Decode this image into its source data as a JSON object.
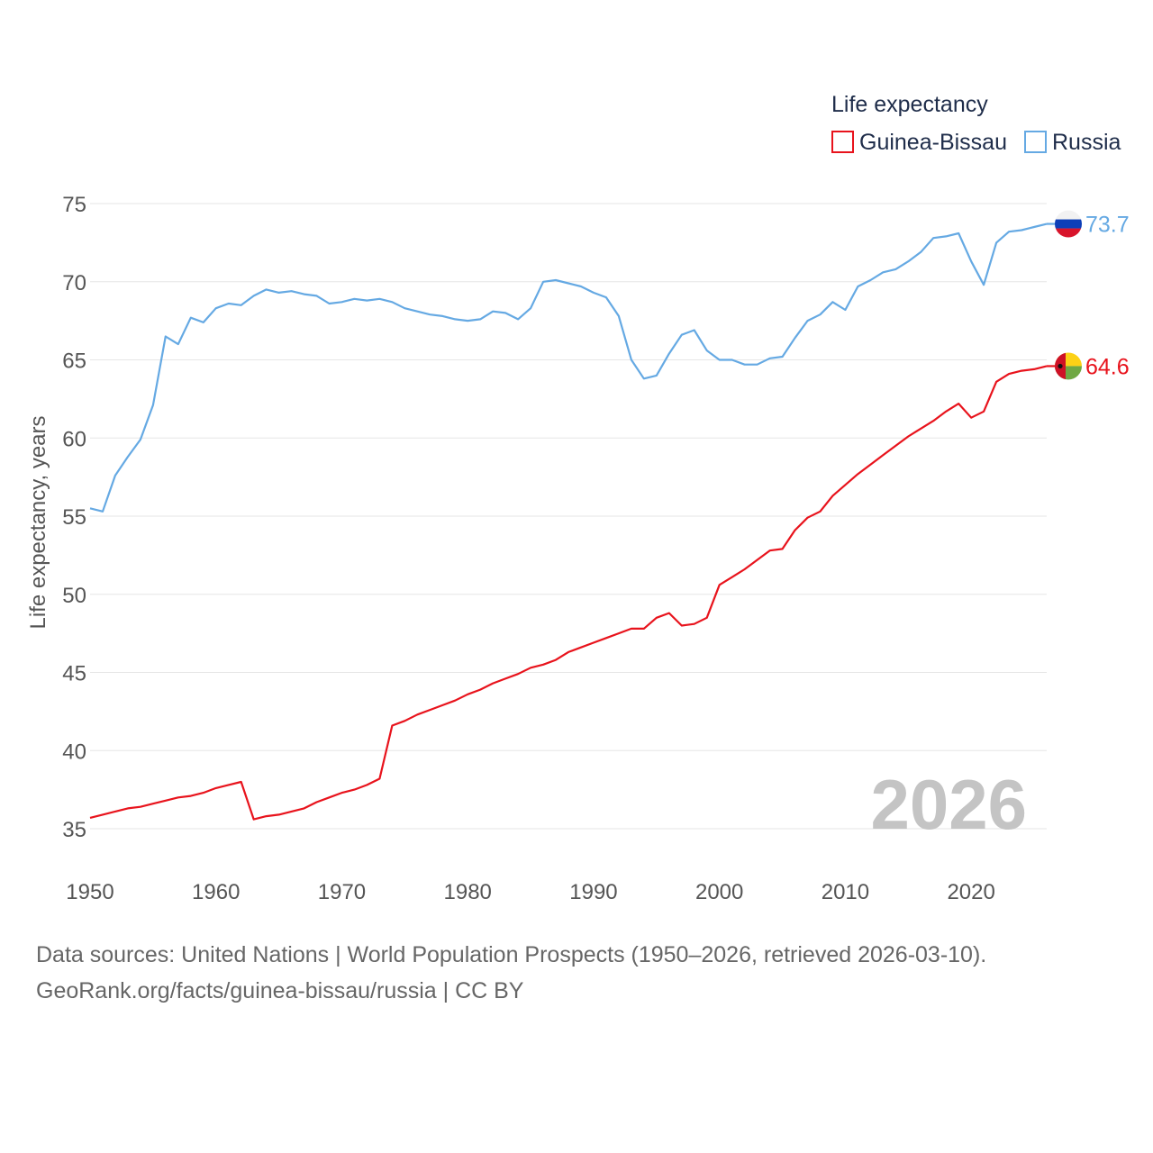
{
  "chart_data": {
    "type": "line",
    "legend_title": "Life expectancy",
    "ylabel": "Life expectancy, years",
    "xlabel": "",
    "ylim": [
      33,
      75.5
    ],
    "xlim": [
      1950,
      2026
    ],
    "yticks": [
      35,
      40,
      45,
      50,
      55,
      60,
      65,
      70,
      75
    ],
    "xticks": [
      1950,
      1960,
      1970,
      1980,
      1990,
      2000,
      2010,
      2020
    ],
    "year_label": "2026",
    "legend_position": "top-right",
    "x": [
      1950,
      1951,
      1952,
      1953,
      1954,
      1955,
      1956,
      1957,
      1958,
      1959,
      1960,
      1961,
      1962,
      1963,
      1964,
      1965,
      1966,
      1967,
      1968,
      1969,
      1970,
      1971,
      1972,
      1973,
      1974,
      1975,
      1976,
      1977,
      1978,
      1979,
      1980,
      1981,
      1982,
      1983,
      1984,
      1985,
      1986,
      1987,
      1988,
      1989,
      1990,
      1991,
      1992,
      1993,
      1994,
      1995,
      1996,
      1997,
      1998,
      1999,
      2000,
      2001,
      2002,
      2003,
      2004,
      2005,
      2006,
      2007,
      2008,
      2009,
      2010,
      2011,
      2012,
      2013,
      2014,
      2015,
      2016,
      2017,
      2018,
      2019,
      2020,
      2021,
      2022,
      2023,
      2024,
      2025,
      2026
    ],
    "series": [
      {
        "name": "Guinea-Bissau",
        "color": "#e8131c",
        "end_label": "64.6",
        "flag": "guinea-bissau-flag-icon",
        "values": [
          35.7,
          35.9,
          36.1,
          36.3,
          36.4,
          36.6,
          36.8,
          37.0,
          37.1,
          37.3,
          37.6,
          37.8,
          38.0,
          35.6,
          35.8,
          35.9,
          36.1,
          36.3,
          36.7,
          37.0,
          37.3,
          37.5,
          37.8,
          38.2,
          41.6,
          41.9,
          42.3,
          42.6,
          42.9,
          43.2,
          43.6,
          43.9,
          44.3,
          44.6,
          44.9,
          45.3,
          45.5,
          45.8,
          46.3,
          46.6,
          46.9,
          47.2,
          47.5,
          47.8,
          47.8,
          48.5,
          48.8,
          48.0,
          48.1,
          48.5,
          50.6,
          51.1,
          51.6,
          52.2,
          52.8,
          52.9,
          54.1,
          54.9,
          55.3,
          56.3,
          57.0,
          57.7,
          58.3,
          58.9,
          59.5,
          60.1,
          60.6,
          61.1,
          61.7,
          62.2,
          61.3,
          61.7,
          63.6,
          64.1,
          64.3,
          64.4,
          64.6
        ]
      },
      {
        "name": "Russia",
        "color": "#65a9e3",
        "end_label": "73.7",
        "flag": "russia-flag-icon",
        "values": [
          55.5,
          55.3,
          57.6,
          58.8,
          59.9,
          62.1,
          66.5,
          66.0,
          67.7,
          67.4,
          68.3,
          68.6,
          68.5,
          69.1,
          69.5,
          69.3,
          69.4,
          69.2,
          69.1,
          68.6,
          68.7,
          68.9,
          68.8,
          68.9,
          68.7,
          68.3,
          68.1,
          67.9,
          67.8,
          67.6,
          67.5,
          67.6,
          68.1,
          68.0,
          67.6,
          68.3,
          70.0,
          70.1,
          69.9,
          69.7,
          69.3,
          69.0,
          67.8,
          65.0,
          63.8,
          64.0,
          65.4,
          66.6,
          66.9,
          65.6,
          65.0,
          65.0,
          64.7,
          64.7,
          65.1,
          65.2,
          66.4,
          67.5,
          67.9,
          68.7,
          68.2,
          69.7,
          70.1,
          70.6,
          70.8,
          71.3,
          71.9,
          72.8,
          72.9,
          73.1,
          71.3,
          69.8,
          72.5,
          73.2,
          73.3,
          73.5,
          73.7
        ]
      }
    ]
  },
  "source": {
    "line1": "Data sources: United Nations | World Population Prospects (1950–2026, retrieved 2026-03-10).",
    "line2": "GeoRank.org/facts/guinea-bissau/russia | CC BY"
  }
}
